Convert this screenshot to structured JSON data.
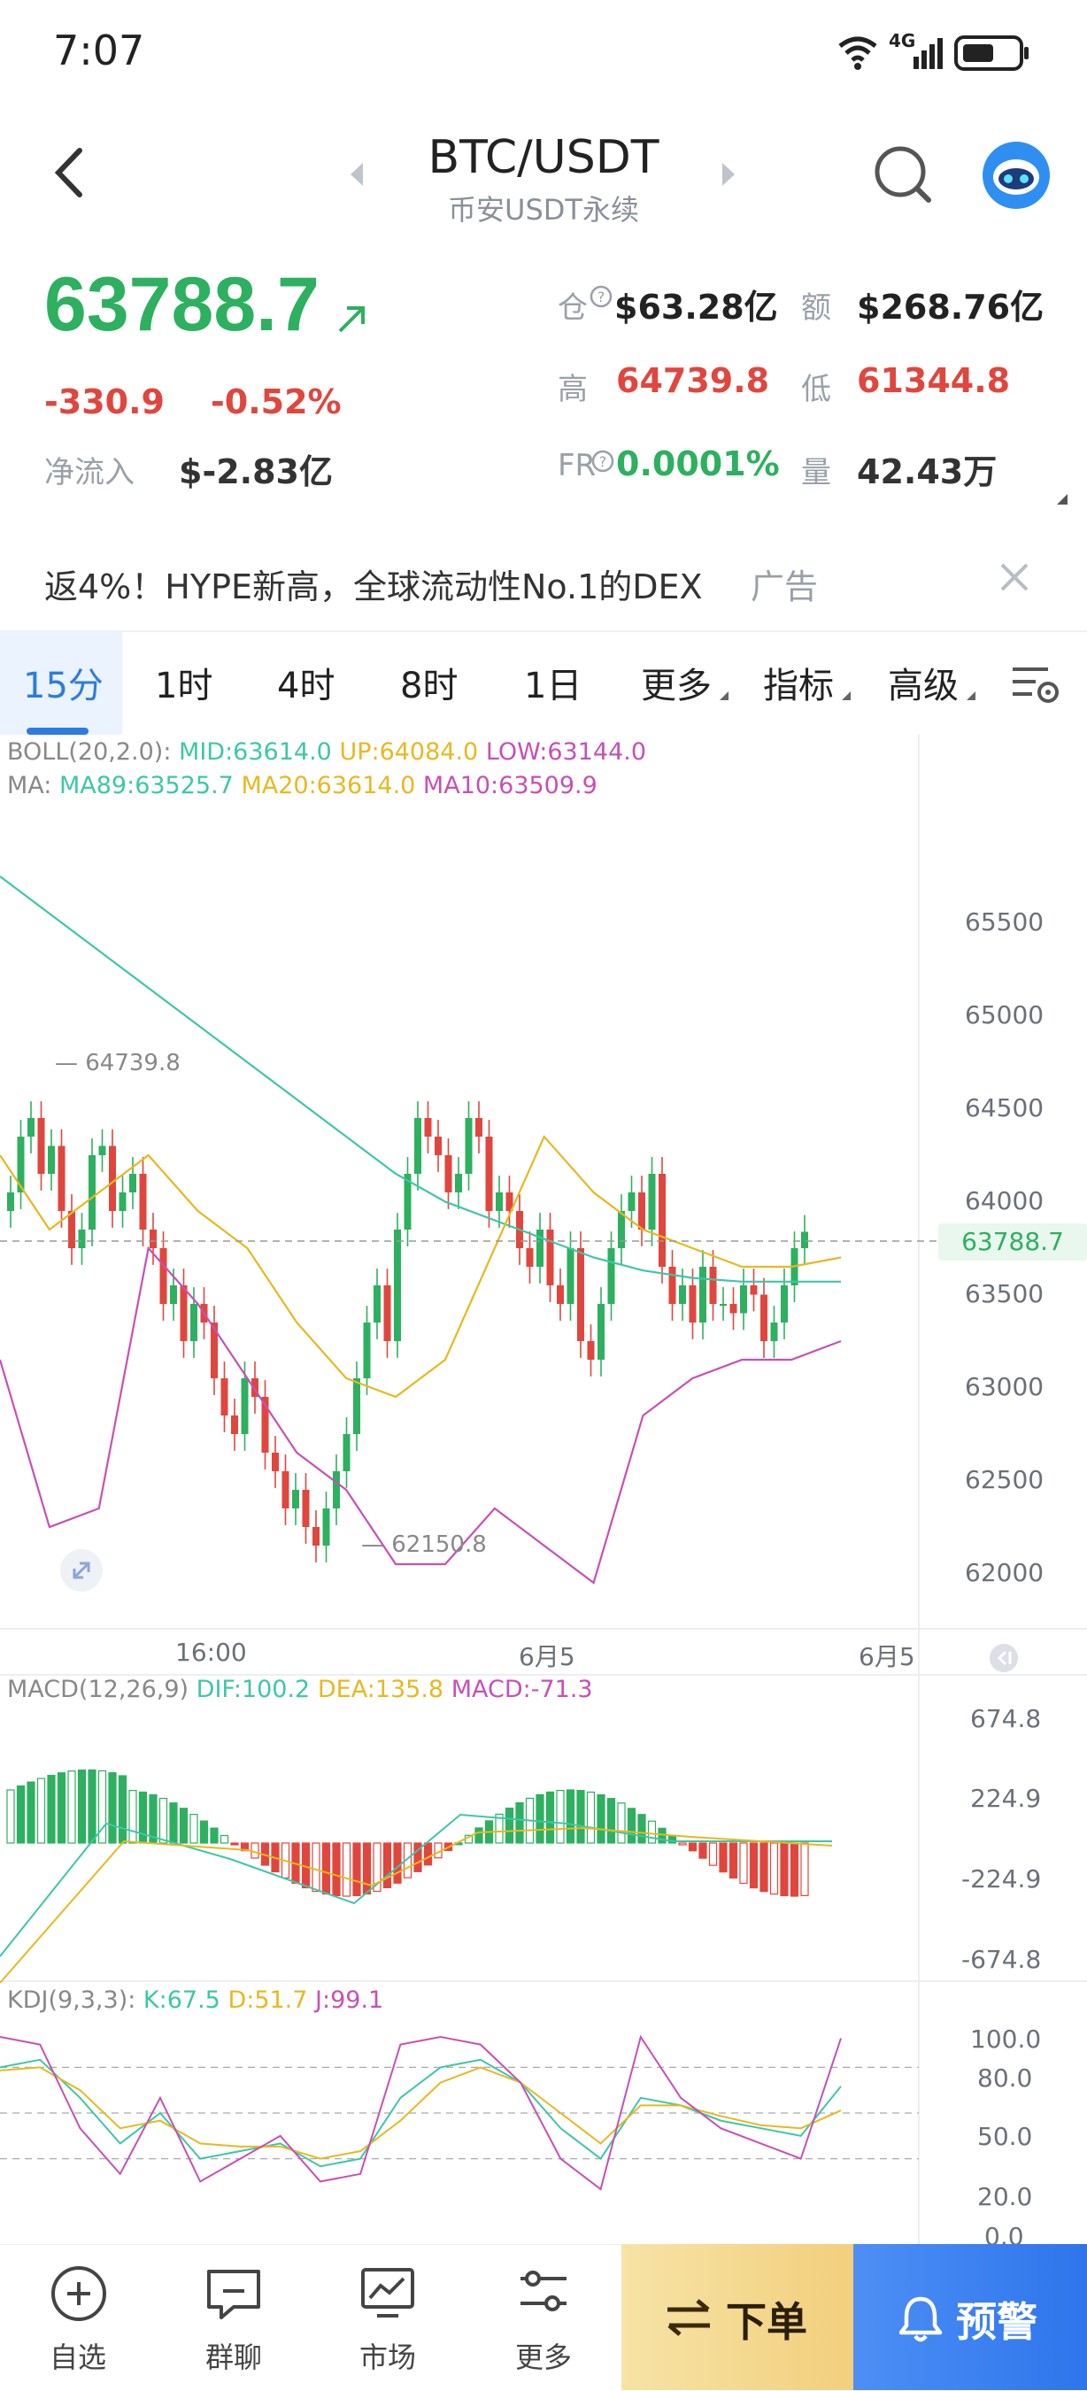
{
  "status_bar": {
    "time": "7:07",
    "network": "4G"
  },
  "header": {
    "pair": "BTC/USDT",
    "market": "币安USDT永续"
  },
  "ticker": {
    "last_price": "63788.7",
    "change_abs": "-330.9",
    "change_pct": "-0.52%",
    "netflow_label": "净流入",
    "netflow_value": "$-2.83亿",
    "open_interest_label": "仓",
    "open_interest_value": "$63.28亿",
    "turnover_label": "额",
    "turnover_value": "$268.76亿",
    "high_label": "高",
    "high_value": "64739.8",
    "low_label": "低",
    "low_value": "61344.8",
    "funding_label": "FR",
    "funding_value": "0.0001%",
    "volume_label": "量",
    "volume_value": "42.43万"
  },
  "ad": {
    "text": "返4%！HYPE新高，全球流动性No.1的DEX",
    "tag": "广告"
  },
  "tabs": [
    {
      "label": "15分",
      "active": true
    },
    {
      "label": "1时"
    },
    {
      "label": "4时"
    },
    {
      "label": "8时"
    },
    {
      "label": "1日"
    },
    {
      "label": "更多"
    },
    {
      "label": "指标"
    },
    {
      "label": "高级"
    }
  ],
  "indicators": {
    "boll_prefix": "BOLL(20,2.0):",
    "boll_mid": "MID:63614.0",
    "boll_up": "UP:64084.0",
    "boll_low": "LOW:63144.0",
    "ma_prefix": "MA:",
    "ma89": "MA89:63525.7",
    "ma20": "MA20:63614.0",
    "ma10": "MA10:63509.9",
    "macd_prefix": "MACD(12,26,9)",
    "macd_dif": "DIF:100.2",
    "macd_dea": "DEA:135.8",
    "macd_val": "MACD:-71.3",
    "kdj_prefix": "KDJ(9,3,3):",
    "kdj_k": "K:67.5",
    "kdj_d": "D:51.7",
    "kdj_j": "J:99.1"
  },
  "chart": {
    "price_axis": [
      "65500",
      "65000",
      "64500",
      "64000",
      "63500",
      "63000",
      "62500",
      "62000"
    ],
    "last_price_tag": "63788.7",
    "high_marker": "64739.8",
    "low_marker": "62150.8",
    "time_axis": [
      "16:00",
      "6月5",
      "6月5"
    ],
    "macd_axis": [
      "674.8",
      "224.9",
      "-224.9",
      "-674.8"
    ],
    "kdj_axis": [
      "100.0",
      "80.0",
      "50.0",
      "20.0",
      "0.0"
    ],
    "colors": {
      "up": "#2db05f",
      "down": "#e0463d",
      "boll_mid": "#3cc7a8",
      "boll_up": "#e8b81f",
      "boll_low": "#c84fb6"
    }
  },
  "bottom_nav": {
    "watchlist": "自选",
    "chat": "群聊",
    "market": "市场",
    "more": "更多",
    "order": "下单",
    "alert": "预警"
  }
}
